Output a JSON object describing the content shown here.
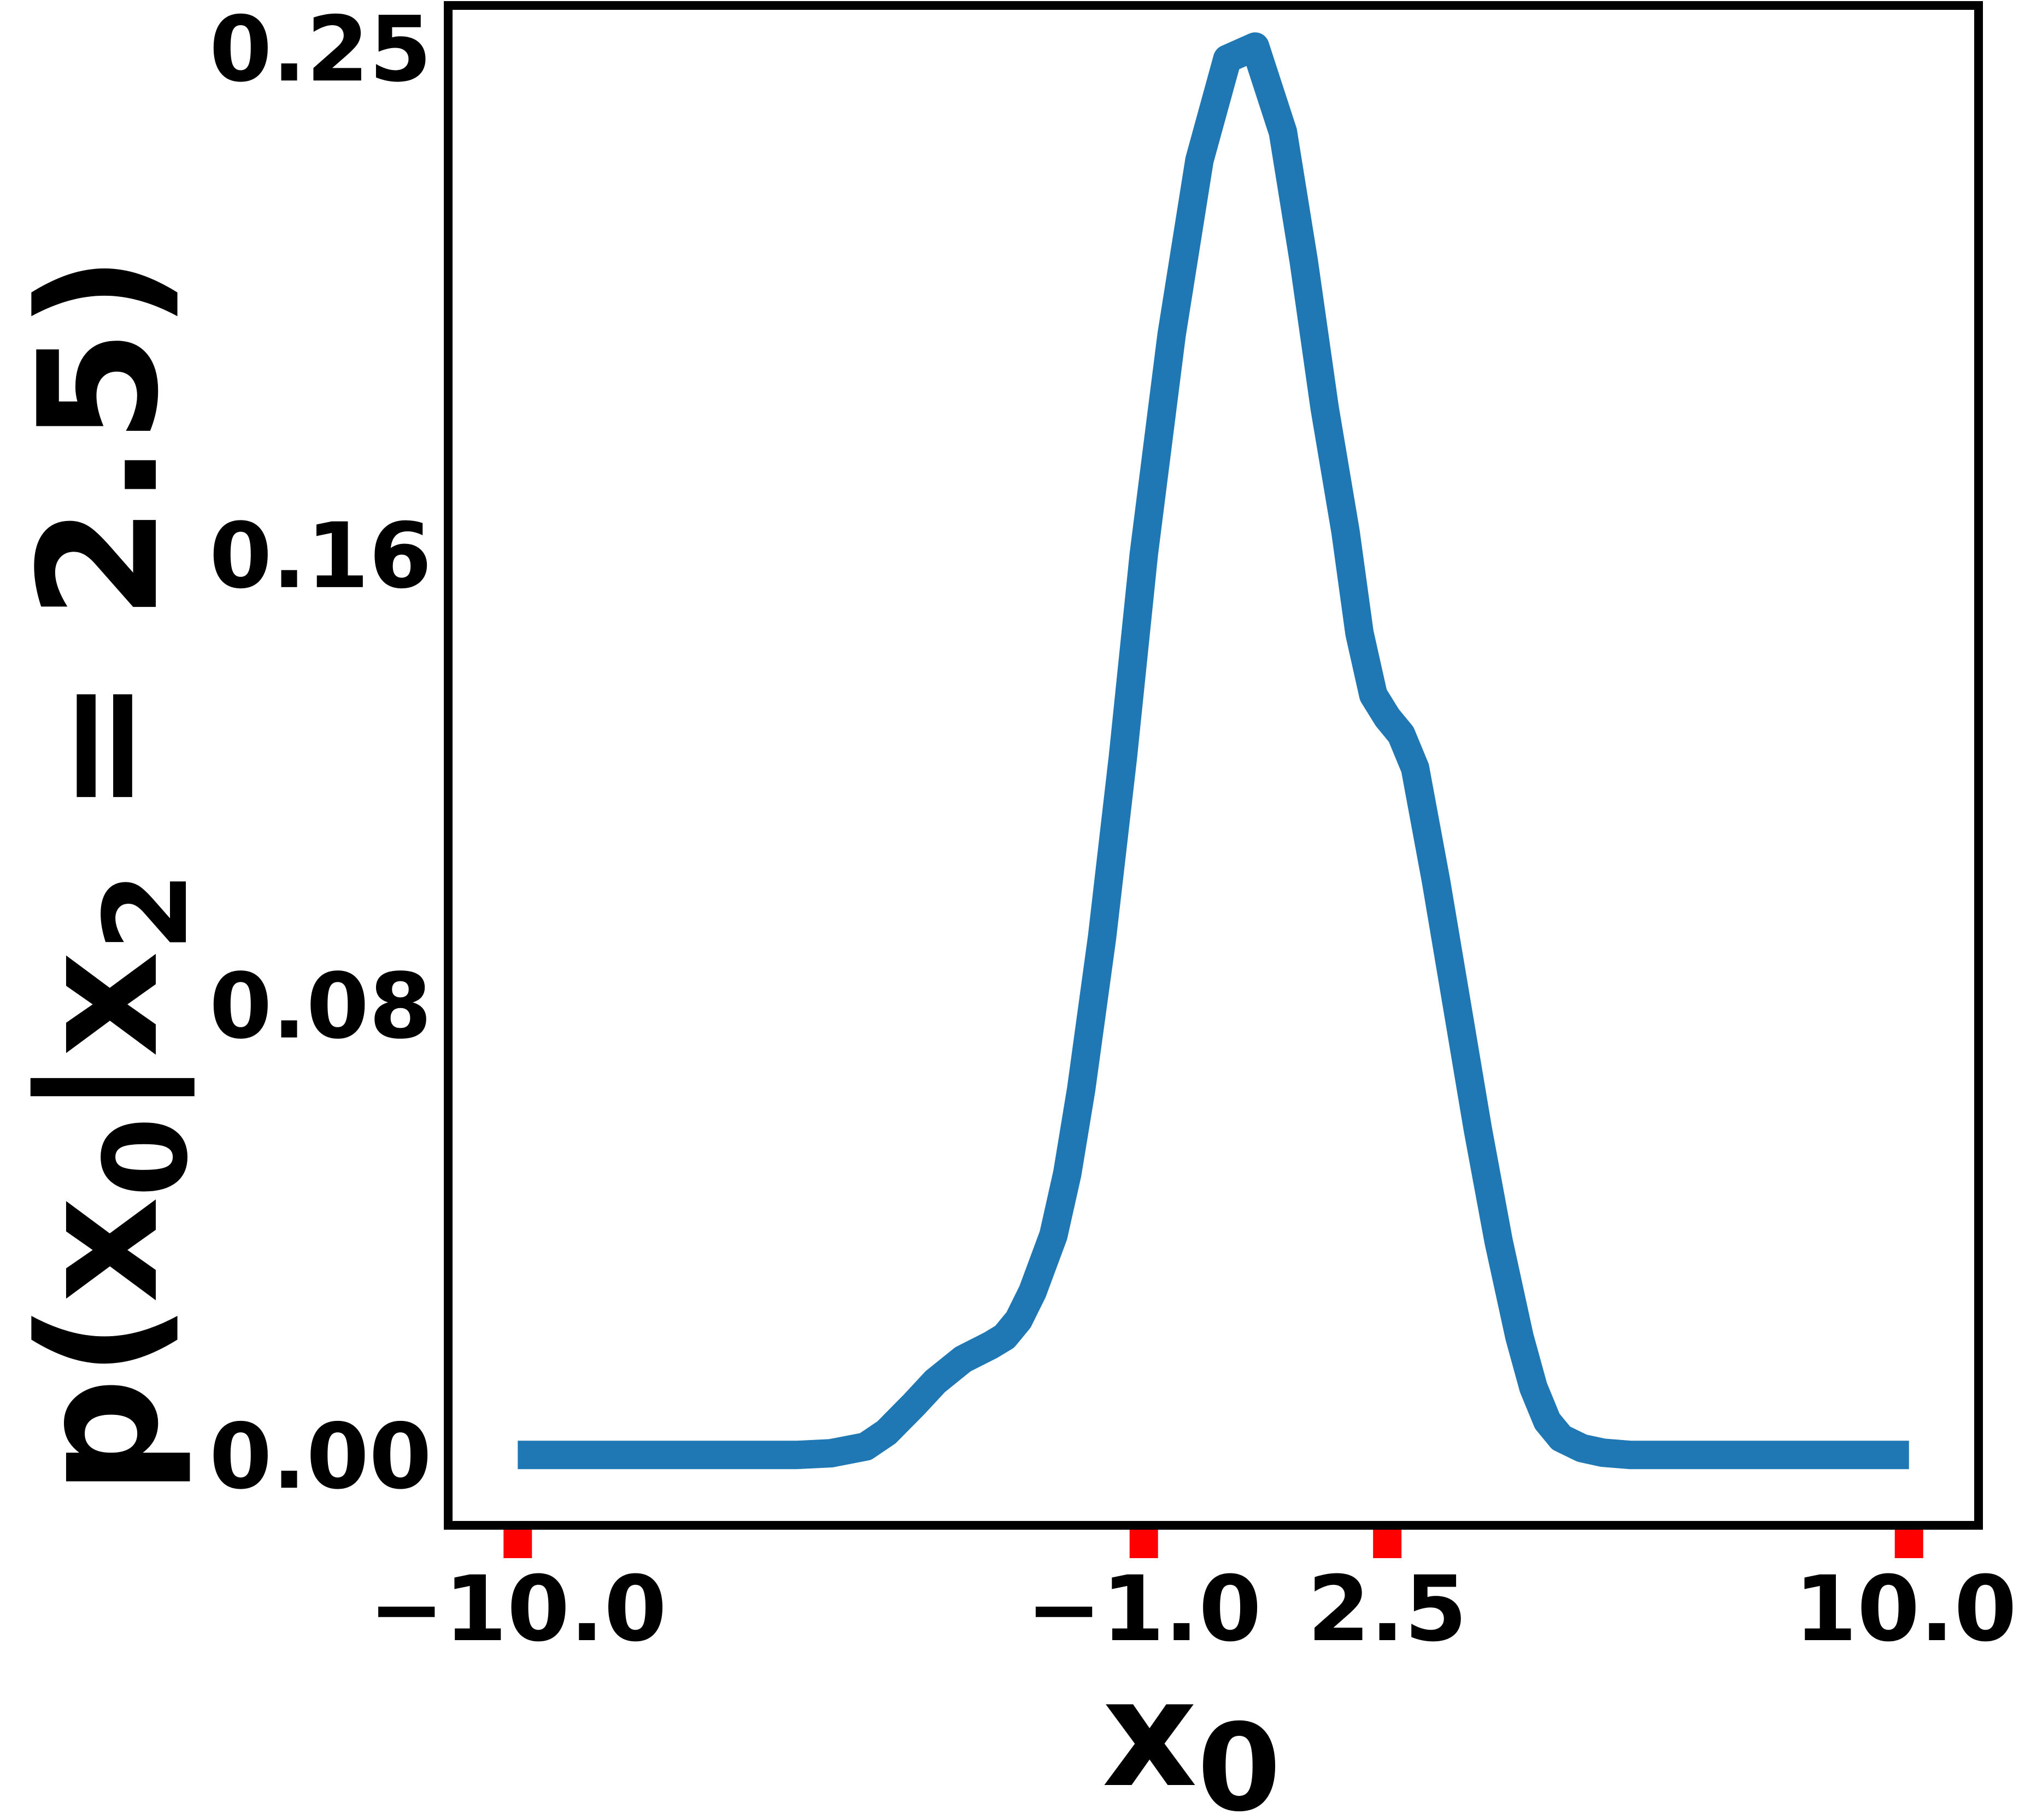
{
  "chart_data": {
    "type": "line",
    "title": "",
    "xlabel_main": "x",
    "xlabel_sub": "0",
    "ylabel_parts": {
      "p": "p(x",
      "sub0": "0",
      "mid": "|x",
      "sub2": "2",
      "end": " = 2.5)"
    },
    "xlim": [
      -11.0,
      11.0
    ],
    "ylim": [
      -0.0125,
      0.2575
    ],
    "x_ticks": [
      {
        "value": -10.0,
        "label": "−10.0"
      },
      {
        "value": -1.0,
        "label": "−1.0"
      },
      {
        "value": 2.5,
        "label": "2.5"
      },
      {
        "value": 10.0,
        "label": "10.0"
      }
    ],
    "y_ticks": [
      {
        "value": 0.0,
        "label": "0.00"
      },
      {
        "value": 0.08,
        "label": "0.08"
      },
      {
        "value": 0.16,
        "label": "0.16"
      },
      {
        "value": 0.25,
        "label": "0.25"
      }
    ],
    "grid": false,
    "colors": {
      "line": "#1f77b4",
      "tick_marker": "#ff0000",
      "frame": "#000000"
    },
    "series": [
      {
        "x": [
          -10.0,
          -9.0,
          -8.0,
          -7.0,
          -6.0,
          -5.5,
          -5.0,
          -4.7,
          -4.3,
          -4.0,
          -3.6,
          -3.2,
          -3.0,
          -2.8,
          -2.6,
          -2.3,
          -2.1,
          -1.9,
          -1.6,
          -1.3,
          -1.0,
          -0.6,
          -0.2,
          0.2,
          0.6,
          1.0,
          1.3,
          1.6,
          1.9,
          2.1,
          2.3,
          2.5,
          2.7,
          2.9,
          3.2,
          3.5,
          3.8,
          4.1,
          4.4,
          4.6,
          4.8,
          5.0,
          5.3,
          5.6,
          6.0,
          6.4,
          6.8,
          7.2,
          7.6,
          8.0,
          8.5,
          9.0,
          10.0
        ],
        "y": [
          0.0,
          0.0,
          0.0,
          0.0,
          0.0,
          0.0003,
          0.0015,
          0.004,
          0.009,
          0.013,
          0.017,
          0.0195,
          0.021,
          0.024,
          0.029,
          0.039,
          0.05,
          0.065,
          0.092,
          0.124,
          0.16,
          0.199,
          0.23,
          0.248,
          0.2502,
          0.235,
          0.212,
          0.186,
          0.164,
          0.146,
          0.135,
          0.131,
          0.128,
          0.122,
          0.102,
          0.08,
          0.058,
          0.038,
          0.021,
          0.012,
          0.006,
          0.003,
          0.0012,
          0.0004,
          0.0,
          0.0,
          0.0,
          0.0,
          0.0,
          0.0,
          0.0,
          0.0,
          0.0
        ]
      }
    ]
  }
}
